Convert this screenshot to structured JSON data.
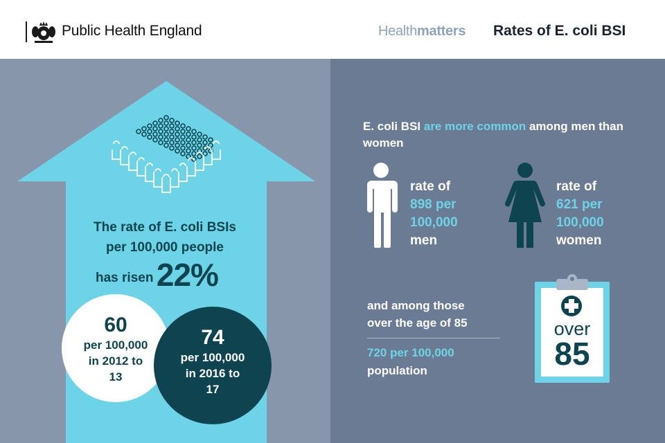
{
  "header": {
    "org_name": "Public Health England",
    "brand_light": "Health",
    "brand_bold": "matters",
    "title": "Rates of E. coli BSI"
  },
  "rise": {
    "line1": "The rate of E. coli BSIs",
    "line2": "per 100,000 people",
    "line3_prefix": "has risen",
    "percent": "22%"
  },
  "rate_2012": {
    "value": "60",
    "line1": "per 100,000",
    "line2": "in 2012 to",
    "line3": "13"
  },
  "rate_2016": {
    "value": "74",
    "line1": "per 100,000",
    "line2": "in 2016 to",
    "line3": "17"
  },
  "gender": {
    "lead_a": "E. coli BSI ",
    "lead_b": "are more common",
    "lead_c": " among men than women",
    "men": {
      "line1": "rate of",
      "line2": "898 per",
      "line3": "100,000",
      "line4": "men"
    },
    "women": {
      "line1": "rate of",
      "line2": "621 per",
      "line3": "100,000",
      "line4": "women"
    }
  },
  "age": {
    "line1": "and among those",
    "line2": "over the age of 85",
    "rate": "720 per 100,000",
    "unit": "population",
    "badge_label": "over",
    "badge_value": "85"
  },
  "colors": {
    "arrow": "#6dd3e6",
    "dark_teal": "#0d4450",
    "left_bg": "#8796ab",
    "right_bg": "#6b7b93"
  },
  "icons": [
    "crest-icon",
    "crowd-icon",
    "man-icon",
    "woman-icon",
    "clipboard-icon",
    "medical-cross-icon"
  ]
}
